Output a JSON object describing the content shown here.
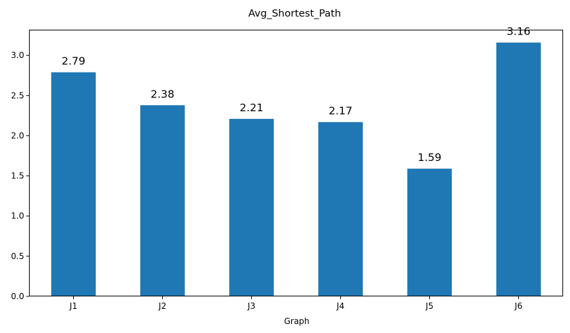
{
  "chart_data": {
    "type": "bar",
    "title": "Avg_Shortest_Path",
    "xlabel": "Graph",
    "ylabel": "",
    "categories": [
      "J1",
      "J2",
      "J3",
      "J4",
      "J5",
      "J6"
    ],
    "values": [
      2.79,
      2.38,
      2.21,
      2.17,
      1.59,
      3.16
    ],
    "data_labels": [
      "2.79",
      "2.38",
      "2.21",
      "2.17",
      "1.59",
      "3.16"
    ],
    "ylim": [
      0,
      3.32
    ],
    "yticks": [
      0.0,
      0.5,
      1.0,
      1.5,
      2.0,
      2.5,
      3.0
    ],
    "ytick_labels": [
      "0.0",
      "0.5",
      "1.0",
      "1.5",
      "2.0",
      "2.5",
      "3.0"
    ],
    "grid": false,
    "legend": "none",
    "bar_color": "#1f77b4"
  }
}
